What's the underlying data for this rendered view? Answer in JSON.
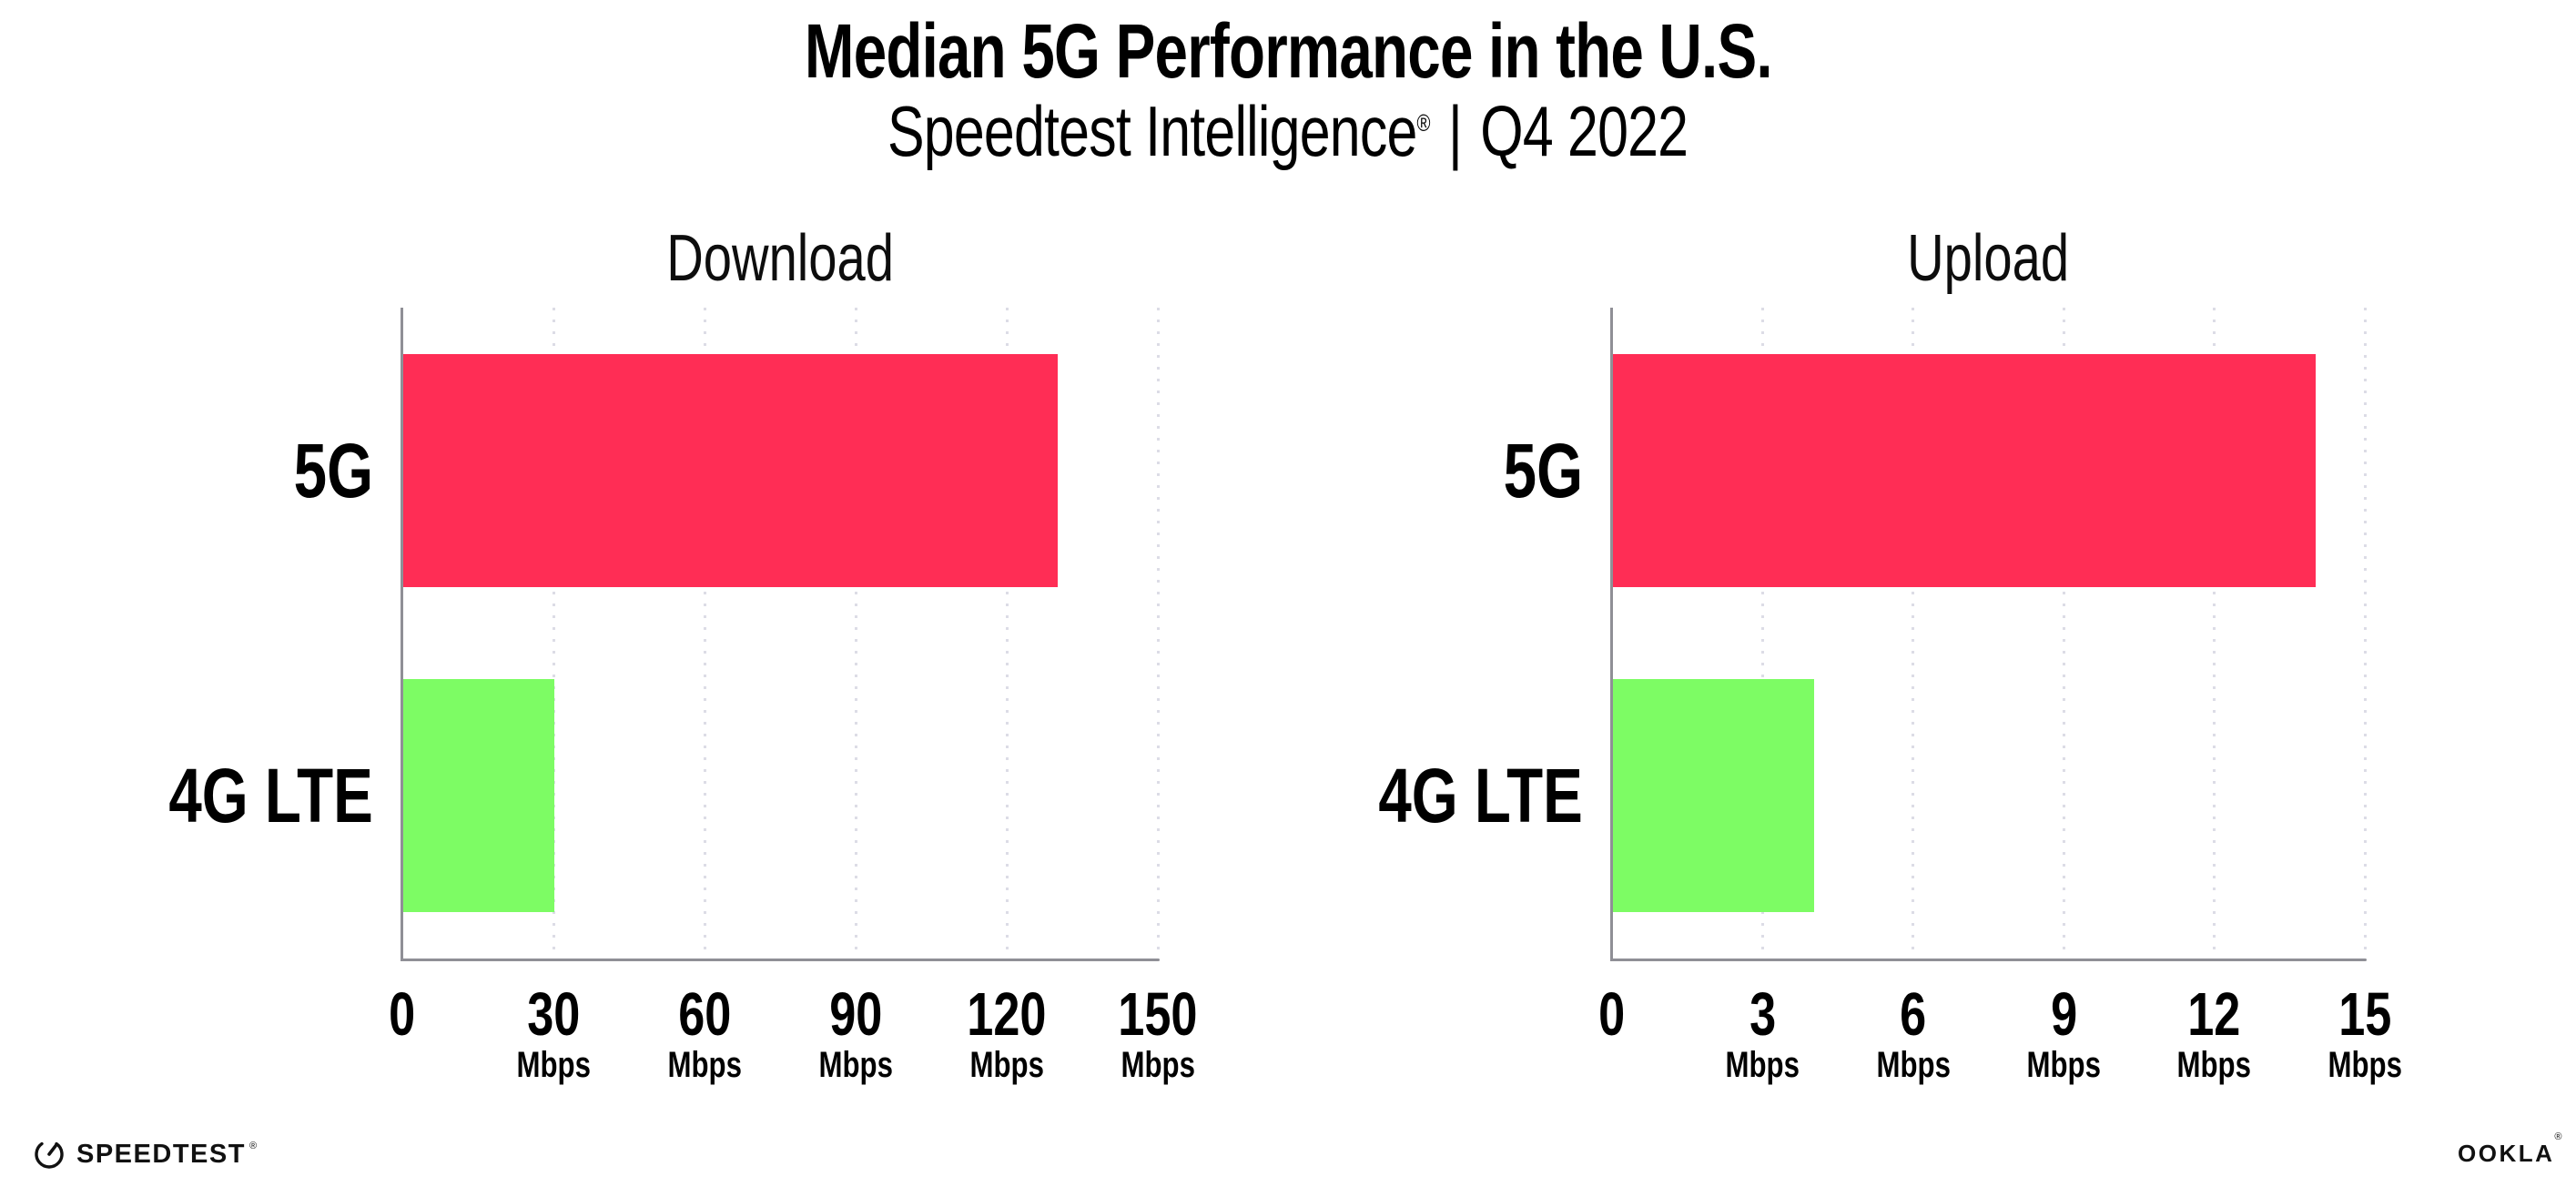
{
  "page": {
    "title": "Median 5G Performance in the U.S.",
    "subtitle": {
      "brand": "Speedtest Intelligence",
      "registered": "®",
      "separator": "|",
      "period": "Q4 2022"
    }
  },
  "footer": {
    "speedtest_wordmark": "SPEEDTEST",
    "speedtest_registered": "®",
    "ookla_wordmark": "OOKLA",
    "ookla_registered": "®"
  },
  "colors": {
    "bar_5g": "#FF2D55",
    "bar_4g_lte": "#7DFC64",
    "axis": "#8F8F96",
    "gridline": "#DCDCE6",
    "text": "#000000"
  },
  "chart_data": [
    {
      "type": "bar",
      "orientation": "horizontal",
      "title": "Download",
      "categories": [
        "5G",
        "4G LTE"
      ],
      "values": [
        130,
        30
      ],
      "unit": "Mbps",
      "xlim": [
        0,
        150
      ],
      "xticks": [
        0,
        30,
        60,
        90,
        120,
        150
      ],
      "grid": "vertical-dotted",
      "legend": "none",
      "bar_colors": [
        "#FF2D55",
        "#7DFC64"
      ]
    },
    {
      "type": "bar",
      "orientation": "horizontal",
      "title": "Upload",
      "categories": [
        "5G",
        "4G LTE"
      ],
      "values": [
        14,
        4
      ],
      "unit": "Mbps",
      "xlim": [
        0,
        15
      ],
      "xticks": [
        0,
        3,
        6,
        9,
        12,
        15
      ],
      "grid": "vertical-dotted",
      "legend": "none",
      "bar_colors": [
        "#FF2D55",
        "#7DFC64"
      ]
    }
  ]
}
